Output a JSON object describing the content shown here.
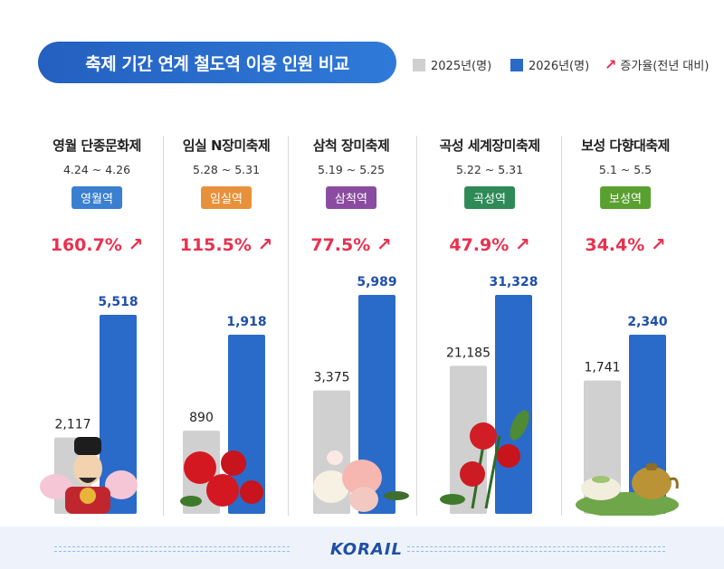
{
  "title": "축제 기간 연계 철도역 이용 인원 비교",
  "legend": {
    "y2025": "2025년(명)",
    "y2026": "2026년(명)",
    "growth": "증가율(전년 대비)"
  },
  "colors": {
    "y2025": "#d0d0d0",
    "y2026": "#2a6bc9",
    "growth": "#e8314f",
    "title_bg": "#2a6bc9"
  },
  "logo": "KORAIL",
  "festivals": [
    {
      "name": "영월 단종문화제",
      "dates": "4.24 ~ 4.26",
      "station": "영월역",
      "badge_color": "#3a7fd0",
      "growth": "160.7%",
      "v2025_label": "2,117",
      "v2026_label": "5,518"
    },
    {
      "name": "임실 N장미축제",
      "dates": "5.28 ~ 5.31",
      "station": "임실역",
      "badge_color": "#e8913a",
      "growth": "115.5%",
      "v2025_label": "890",
      "v2026_label": "1,918"
    },
    {
      "name": "삼척 장미축제",
      "dates": "5.19 ~ 5.25",
      "station": "삼척역",
      "badge_color": "#8a4ca0",
      "growth": "77.5%",
      "v2025_label": "3,375",
      "v2026_label": "5,989"
    },
    {
      "name": "곡성 세계장미축제",
      "dates": "5.22 ~ 5.31",
      "station": "곡성역",
      "badge_color": "#2e8a56",
      "growth": "47.9%",
      "v2025_label": "21,185",
      "v2026_label": "31,328"
    },
    {
      "name": "보성 다향대축제",
      "dates": "5.1 ~ 5.5",
      "station": "보성역",
      "badge_color": "#5aa030",
      "growth": "34.4%",
      "v2025_label": "1,741",
      "v2026_label": "2,340"
    }
  ],
  "chart_data": {
    "type": "bar",
    "title": "축제 기간 연계 철도역 이용 인원 비교",
    "categories": [
      "영월 단종문화제",
      "임실 N장미축제",
      "삼척 장미축제",
      "곡성 세계장미축제",
      "보성 다향대축제"
    ],
    "series": [
      {
        "name": "2025년(명)",
        "values": [
          2117,
          890,
          3375,
          21185,
          1741
        ]
      },
      {
        "name": "2026년(명)",
        "values": [
          5518,
          1918,
          5989,
          31328,
          2340
        ]
      }
    ],
    "growth": {
      "name": "증가율(전년 대비)",
      "values": [
        160.7,
        115.5,
        77.5,
        47.9,
        34.4
      ],
      "unit": "%"
    },
    "legend_position": "top-right",
    "grid": false
  }
}
